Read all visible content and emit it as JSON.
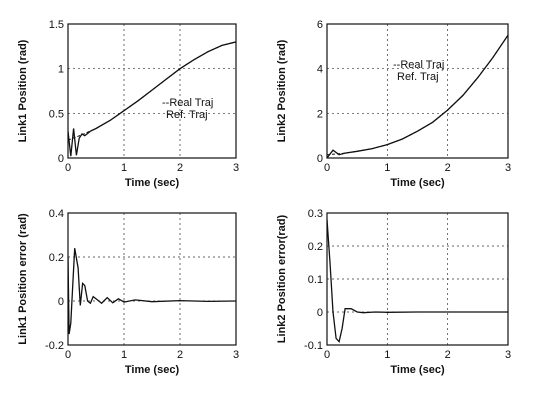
{
  "chart_data": [
    {
      "type": "line",
      "xlabel": "Time (sec)",
      "ylabel": "Link1  Position (rad)",
      "xlim": [
        0,
        3
      ],
      "ylim": [
        0,
        1.5
      ],
      "xticks": [
        "0",
        "1",
        "2",
        "3"
      ],
      "yticks": [
        "0",
        "0.5",
        "1",
        "1.5"
      ],
      "grid": true,
      "legend": [
        "--Real Traj",
        "Ref. Traj"
      ],
      "series": [
        {
          "name": "Real Traj",
          "x": [
            0,
            0.05,
            0.1,
            0.15,
            0.2,
            0.25,
            0.3,
            0.4,
            0.5,
            0.75,
            1.0,
            1.25,
            1.5,
            1.75,
            2.0,
            2.25,
            2.5,
            2.75,
            3.0
          ],
          "y": [
            0.3,
            0.02,
            0.33,
            0.03,
            0.22,
            0.27,
            0.25,
            0.3,
            0.33,
            0.42,
            0.53,
            0.64,
            0.76,
            0.88,
            1.0,
            1.1,
            1.19,
            1.26,
            1.3
          ]
        },
        {
          "name": "Ref. Traj",
          "x": [
            0,
            0.25,
            0.5,
            0.75,
            1.0,
            1.25,
            1.5,
            1.75,
            2.0,
            2.25,
            2.5,
            2.75,
            3.0
          ],
          "y": [
            0.2,
            0.26,
            0.33,
            0.42,
            0.53,
            0.64,
            0.76,
            0.88,
            1.0,
            1.1,
            1.19,
            1.26,
            1.3
          ]
        }
      ]
    },
    {
      "type": "line",
      "xlabel": "Time (sec)",
      "ylabel": "Link2  Position (rad)",
      "xlim": [
        0,
        3
      ],
      "ylim": [
        0,
        6
      ],
      "xticks": [
        "0",
        "1",
        "2",
        "3"
      ],
      "yticks": [
        "0",
        "2",
        "4",
        "6"
      ],
      "grid": true,
      "legend": [
        "--Real Traj",
        "Ref. Traj"
      ],
      "series": [
        {
          "name": "Real Traj",
          "x": [
            0,
            0.1,
            0.2,
            0.3,
            0.5,
            0.75,
            1.0,
            1.25,
            1.5,
            1.75,
            2.0,
            2.25,
            2.5,
            2.75,
            3.0
          ],
          "y": [
            0.0,
            0.35,
            0.15,
            0.22,
            0.3,
            0.42,
            0.6,
            0.85,
            1.2,
            1.6,
            2.15,
            2.8,
            3.6,
            4.5,
            5.5
          ]
        },
        {
          "name": "Ref. Traj",
          "x": [
            0,
            0.25,
            0.5,
            0.75,
            1.0,
            1.25,
            1.5,
            1.75,
            2.0,
            2.25,
            2.5,
            2.75,
            3.0
          ],
          "y": [
            0.15,
            0.2,
            0.3,
            0.42,
            0.6,
            0.85,
            1.2,
            1.6,
            2.15,
            2.8,
            3.6,
            4.5,
            5.5
          ]
        }
      ]
    },
    {
      "type": "line",
      "xlabel": "Time (sec)",
      "ylabel": "Link1 Position error (rad)",
      "xlim": [
        0,
        3
      ],
      "ylim": [
        -0.2,
        0.4
      ],
      "xticks": [
        "0",
        "1",
        "2",
        "3"
      ],
      "yticks": [
        "-0.2",
        "0",
        "0.2",
        "0.4"
      ],
      "grid": true,
      "series": [
        {
          "x": [
            0,
            0.02,
            0.05,
            0.08,
            0.12,
            0.18,
            0.22,
            0.26,
            0.3,
            0.35,
            0.4,
            0.45,
            0.5,
            0.6,
            0.7,
            0.8,
            0.9,
            1.0,
            1.2,
            1.5,
            2.0,
            2.5,
            3.0
          ],
          "y": [
            0.2,
            -0.15,
            -0.1,
            0.05,
            0.24,
            0.15,
            -0.02,
            0.08,
            0.07,
            0.0,
            -0.01,
            0.02,
            0.01,
            -0.01,
            0.015,
            -0.008,
            0.01,
            -0.005,
            0.005,
            -0.003,
            0.002,
            -0.002,
            0.0
          ]
        }
      ]
    },
    {
      "type": "line",
      "xlabel": "Time (sec)",
      "ylabel": "Link2 Position error(rad)",
      "xlim": [
        0,
        3
      ],
      "ylim": [
        -0.1,
        0.3
      ],
      "xticks": [
        "0",
        "1",
        "2",
        "3"
      ],
      "yticks": [
        "-0.1",
        "0",
        "0.1",
        "0.2",
        "0.3"
      ],
      "grid": true,
      "series": [
        {
          "x": [
            0,
            0.05,
            0.1,
            0.15,
            0.2,
            0.25,
            0.3,
            0.4,
            0.5,
            0.6,
            0.8,
            1.0,
            1.5,
            2.0,
            2.5,
            3.0
          ],
          "y": [
            0.28,
            0.15,
            0.0,
            -0.08,
            -0.09,
            -0.05,
            0.01,
            0.01,
            0.0,
            -0.002,
            0.0,
            -0.001,
            0.0,
            0.0,
            0.0,
            0.0
          ]
        }
      ]
    }
  ]
}
